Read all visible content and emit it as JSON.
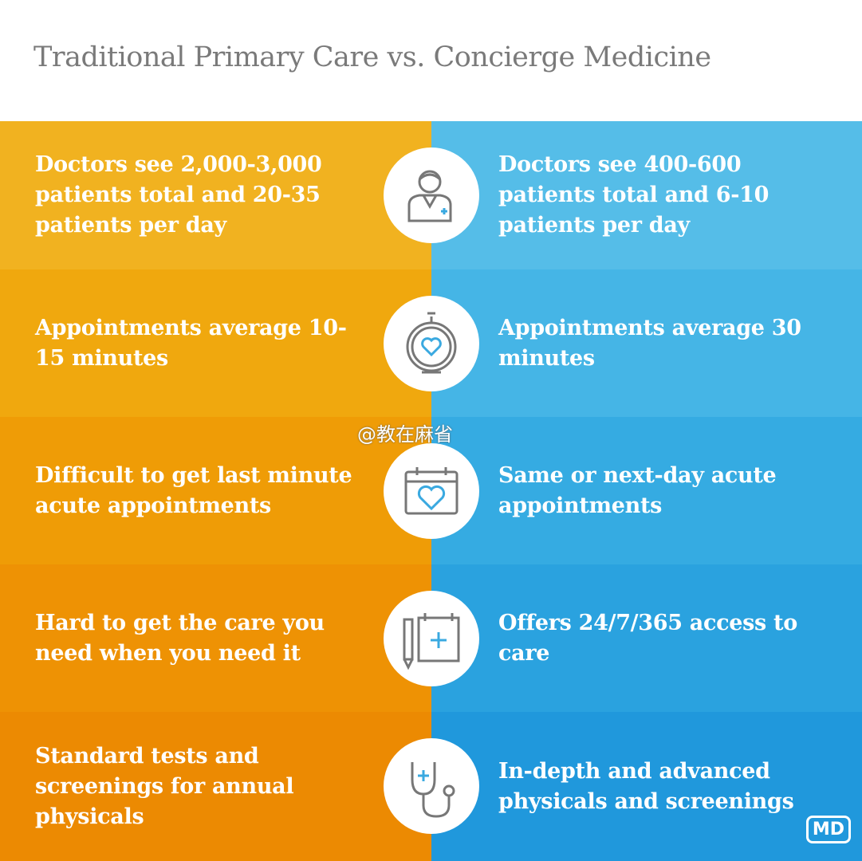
{
  "header": {
    "title": "Traditional Primary Care vs. Concierge Medicine"
  },
  "rows": [
    {
      "left": "Doctors see 2,000-3,000 patients total and 20-35 patients per day",
      "right": "Doctors see 400-600 patients total and 6-10 patients per day"
    },
    {
      "left": "Appointments average 10-15 minutes",
      "right": "Appointments average 30 minutes"
    },
    {
      "left": "Difficult to get last minute acute appointments",
      "right": "Same or next-day acute appointments"
    },
    {
      "left": "Hard to get the care you need when you need it",
      "right": "Offers 24/7/365 access to care"
    },
    {
      "left": "Standard tests and screenings for annual physicals",
      "right": "In-depth and advanced physicals and screenings"
    }
  ],
  "watermark": "@教在麻省",
  "logo": "MD"
}
